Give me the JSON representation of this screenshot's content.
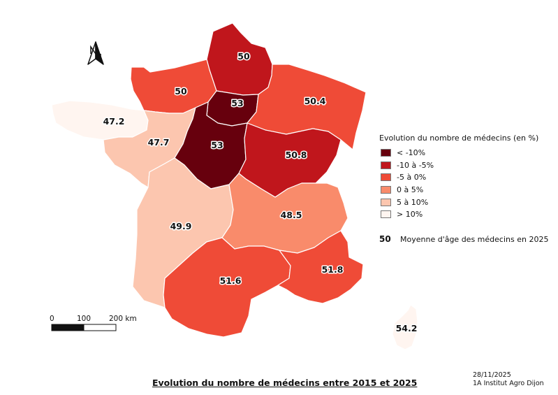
{
  "map": {
    "regions": [
      {
        "id": "hauts-de-france",
        "value": "50",
        "class": "minus10_minus5"
      },
      {
        "id": "normandie",
        "value": "50",
        "class": "minus5_0"
      },
      {
        "id": "ile-de-france",
        "value": "53",
        "class": "lt_minus10"
      },
      {
        "id": "grand-est",
        "value": "50.4",
        "class": "minus5_0"
      },
      {
        "id": "bretagne",
        "value": "47.2",
        "class": "gt10"
      },
      {
        "id": "pays-de-la-loire",
        "value": "47.7",
        "class": "5_10"
      },
      {
        "id": "centre-val-de-loire",
        "value": "53",
        "class": "lt_minus10"
      },
      {
        "id": "bourgogne-franche-comte",
        "value": "50.8",
        "class": "minus10_minus5"
      },
      {
        "id": "nouvelle-aquitaine",
        "value": "49.9",
        "class": "5_10"
      },
      {
        "id": "auvergne-rhone-alpes",
        "value": "48.5",
        "class": "0_5"
      },
      {
        "id": "occitanie",
        "value": "51.6",
        "class": "minus5_0"
      },
      {
        "id": "provence-alpes-cote-dazur",
        "value": "51.8",
        "class": "minus5_0"
      },
      {
        "id": "corse",
        "value": "54.2",
        "class": "gt10"
      }
    ]
  },
  "legend": {
    "title": "Evolution du nombre de médecins (en %)",
    "items": [
      {
        "key": "lt_minus10",
        "label": "< -10%",
        "color": "#67000d"
      },
      {
        "key": "minus10_minus5",
        "label": "-10 à -5%",
        "color": "#c0161c"
      },
      {
        "key": "minus5_0",
        "label": "-5 à 0%",
        "color": "#ef4b37"
      },
      {
        "key": "0_5",
        "label": "0 à 5%",
        "color": "#f98b6b"
      },
      {
        "key": "5_10",
        "label": "5 à 10%",
        "color": "#fcc6af"
      },
      {
        "key": "gt10",
        "label": "> 10%",
        "color": "#fff5f0"
      }
    ],
    "note_value": "50",
    "note_label": "Moyenne d'âge des médecins en 2025"
  },
  "scale": {
    "labels": [
      "0",
      "100",
      "200 km"
    ]
  },
  "title": "Evolution du nombre de médecins entre 2015 et 2025",
  "credit": {
    "date": "28/11/2025",
    "author": "1A Institut Agro Dijon"
  },
  "icons": {
    "north_arrow": "north-arrow-icon"
  }
}
